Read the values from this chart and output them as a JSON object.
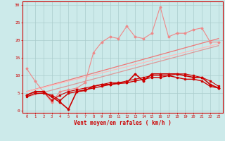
{
  "bg_color": "#cceaea",
  "grid_color": "#aacccc",
  "text_color": "#cc0000",
  "xlabel": "Vent moyen/en rafales ( km/h )",
  "ylabel_ticks": [
    0,
    5,
    10,
    15,
    20,
    25,
    30
  ],
  "x_ticks": [
    0,
    1,
    2,
    3,
    4,
    5,
    6,
    7,
    8,
    9,
    10,
    11,
    12,
    13,
    14,
    15,
    16,
    17,
    18,
    19,
    20,
    21,
    22,
    23
  ],
  "ylim": [
    -0.5,
    31
  ],
  "xlim": [
    -0.5,
    23.5
  ],
  "line_trend1": {
    "x": [
      0,
      23
    ],
    "y": [
      5.5,
      20.5
    ],
    "color": "#ee7777",
    "lw": 0.9
  },
  "line_trend2": {
    "x": [
      0,
      23
    ],
    "y": [
      4.0,
      18.5
    ],
    "color": "#dd9999",
    "lw": 0.9
  },
  "line_trend3": {
    "x": [
      0,
      23
    ],
    "y": [
      5.5,
      19.0
    ],
    "color": "#ffbbbb",
    "lw": 0.9
  },
  "line_pink": {
    "x": [
      0,
      1,
      2,
      3,
      4,
      5,
      6,
      7,
      8,
      9,
      10,
      11,
      12,
      13,
      14,
      15,
      16,
      17,
      18,
      19,
      20,
      21,
      22,
      23
    ],
    "y": [
      12.0,
      8.5,
      5.5,
      2.5,
      5.5,
      6.0,
      6.5,
      8.0,
      16.5,
      19.5,
      21.0,
      20.5,
      24.0,
      21.0,
      20.5,
      22.0,
      29.5,
      21.0,
      22.0,
      22.0,
      23.0,
      23.5,
      19.5,
      19.5
    ],
    "color": "#ee8888",
    "lw": 0.8,
    "marker": "D",
    "ms": 1.5
  },
  "line1": {
    "x": [
      0,
      1,
      2,
      3,
      4,
      5,
      6,
      7,
      8,
      9,
      10,
      11,
      12,
      13,
      14,
      15,
      16,
      17,
      18,
      19,
      20,
      21,
      22,
      23
    ],
    "y": [
      4.5,
      5.5,
      5.5,
      4.0,
      2.5,
      0.5,
      5.5,
      5.8,
      7.0,
      7.5,
      7.5,
      7.8,
      8.0,
      10.5,
      8.5,
      10.5,
      10.5,
      10.5,
      10.5,
      10.0,
      9.5,
      9.5,
      7.5,
      6.5
    ],
    "color": "#cc0000",
    "lw": 1.2,
    "marker": "D",
    "ms": 1.5
  },
  "line2": {
    "x": [
      0,
      1,
      2,
      3,
      4,
      5,
      6,
      7,
      8,
      9,
      10,
      11,
      12,
      13,
      14,
      15,
      16,
      17,
      18,
      19,
      20,
      21,
      22,
      23
    ],
    "y": [
      4.0,
      5.0,
      5.0,
      4.5,
      3.0,
      5.0,
      5.5,
      6.0,
      6.5,
      7.0,
      7.5,
      8.0,
      8.0,
      8.5,
      9.0,
      9.5,
      9.5,
      10.0,
      9.5,
      9.0,
      9.0,
      8.5,
      7.0,
      6.5
    ],
    "color": "#cc0000",
    "lw": 1.0,
    "marker": "o",
    "ms": 1.5
  },
  "line3": {
    "x": [
      0,
      1,
      2,
      3,
      4,
      5,
      6,
      7,
      8,
      9,
      10,
      11,
      12,
      13,
      14,
      15,
      16,
      17,
      18,
      19,
      20,
      21,
      22,
      23
    ],
    "y": [
      4.5,
      5.5,
      5.5,
      3.0,
      4.5,
      5.5,
      6.0,
      6.5,
      7.0,
      7.5,
      8.0,
      8.0,
      8.5,
      9.0,
      9.5,
      10.0,
      10.0,
      10.0,
      10.5,
      10.5,
      10.0,
      9.5,
      8.5,
      7.0
    ],
    "color": "#cc0000",
    "lw": 0.8,
    "marker": "s",
    "ms": 1.5
  },
  "wind_symbols": {
    "x": [
      0,
      1,
      2,
      3,
      4,
      5,
      6,
      7,
      8,
      9,
      10,
      11,
      12,
      13,
      14,
      15,
      16,
      17,
      18,
      19,
      20,
      21,
      22,
      23
    ],
    "symbols": [
      "→",
      "→",
      "↘",
      "↓",
      "↘",
      "↓",
      "↓",
      "↙",
      "←",
      "←",
      "↘",
      "↓",
      "↙",
      "↘",
      "↓",
      "↓",
      "↘",
      "↓",
      "↘",
      "↓",
      "↘",
      "↘",
      "↗",
      "↘"
    ]
  }
}
